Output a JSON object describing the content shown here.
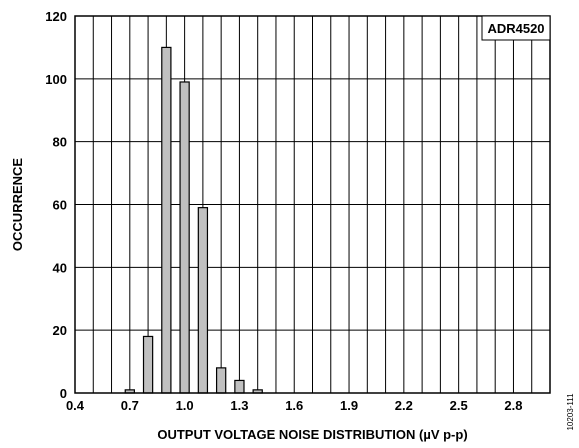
{
  "chart_data": {
    "type": "bar",
    "title": "",
    "xlabel": "OUTPUT VOLTAGE NOISE DISTRIBUTION (µV p-p)",
    "ylabel": "OCCURRENCE",
    "legend": "ADR4520",
    "legend_position": "top-right",
    "figure_id": "10203-111",
    "xlim": [
      0.4,
      3.0
    ],
    "ylim": [
      0,
      120
    ],
    "x_ticks": [
      0.4,
      0.7,
      1.0,
      1.3,
      1.6,
      1.9,
      2.2,
      2.5,
      2.8
    ],
    "x_tick_labels": [
      "0.4",
      "0.7",
      "1.0",
      "1.3",
      "1.6",
      "1.9",
      "2.2",
      "2.5",
      "2.8"
    ],
    "y_ticks": [
      0,
      20,
      40,
      60,
      80,
      100,
      120
    ],
    "y_tick_labels": [
      "0",
      "20",
      "40",
      "60",
      "80",
      "100",
      "120"
    ],
    "x_grid_step": 0.1,
    "y_grid_step": 20,
    "grid": true,
    "bar_color": "#c0c0c0",
    "bars": [
      {
        "x": 0.7,
        "value": 1
      },
      {
        "x": 0.8,
        "value": 18
      },
      {
        "x": 0.9,
        "value": 110
      },
      {
        "x": 1.0,
        "value": 99
      },
      {
        "x": 1.1,
        "value": 59
      },
      {
        "x": 1.2,
        "value": 8
      },
      {
        "x": 1.3,
        "value": 4
      },
      {
        "x": 1.4,
        "value": 1
      }
    ]
  }
}
